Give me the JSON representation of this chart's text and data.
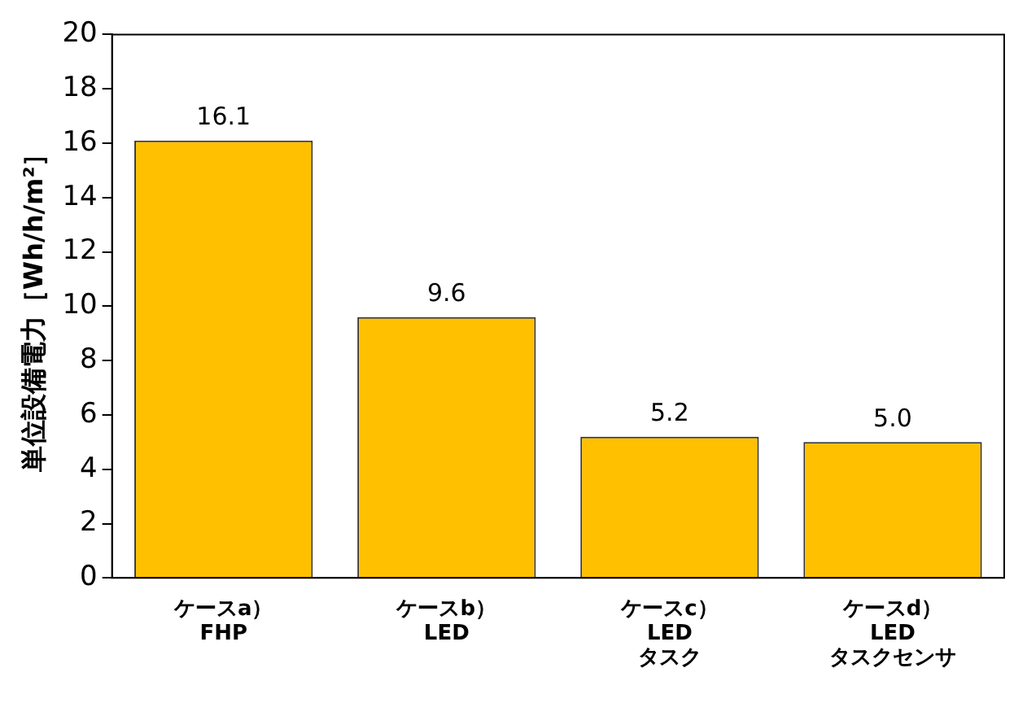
{
  "chart_data": {
    "type": "bar",
    "ylabel": "単位設備電力［Wh/h/m²］",
    "categories": [
      "ケースa）\nFHP",
      "ケースb）\nLED",
      "ケースc）\nLED\nタスク",
      "ケースd）\nLED\nタスクセンサ"
    ],
    "values": [
      16.1,
      9.6,
      5.2,
      5.0
    ],
    "value_labels": [
      "16.1",
      "9.6",
      "5.2",
      "5.0"
    ],
    "color": "#ffc000",
    "ylim": [
      0,
      20
    ],
    "yticks": [
      0,
      2,
      4,
      6,
      8,
      10,
      12,
      14,
      16,
      18,
      20
    ]
  }
}
